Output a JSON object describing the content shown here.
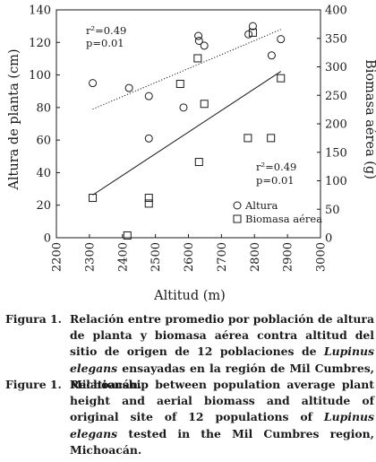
{
  "chart_data": {
    "type": "scatter",
    "x_axis": {
      "label": "Altitud (m)",
      "range": [
        2200,
        3000
      ],
      "ticks": [
        2200,
        2300,
        2400,
        2500,
        2600,
        2700,
        2800,
        2900,
        3000
      ]
    },
    "y_axis_left": {
      "label": "Altura de planta (cm)",
      "range": [
        0,
        140
      ],
      "ticks": [
        0,
        20,
        40,
        60,
        80,
        100,
        120,
        140
      ]
    },
    "y_axis_right": {
      "label": "Biomasa aérea (g)",
      "range": [
        0,
        400
      ],
      "ticks": [
        0,
        50,
        100,
        150,
        200,
        250,
        300,
        350,
        400
      ]
    },
    "series": [
      {
        "name": "Altura",
        "marker": "circle",
        "axis": "left",
        "points": [
          [
            2310,
            95
          ],
          [
            2420,
            92
          ],
          [
            2480,
            87
          ],
          [
            2480,
            61
          ],
          [
            2585,
            80
          ],
          [
            2630,
            124
          ],
          [
            2632,
            121
          ],
          [
            2648,
            118
          ],
          [
            2782,
            125
          ],
          [
            2795,
            130
          ],
          [
            2852,
            112
          ],
          [
            2880,
            122
          ]
        ],
        "fit": {
          "type": "linear",
          "line_style": "dotted",
          "from": [
            2310,
            79
          ],
          "to": [
            2880,
            128
          ]
        }
      },
      {
        "name": "Biomasa aérea",
        "marker": "square",
        "axis": "right",
        "points": [
          [
            2310,
            70
          ],
          [
            2415,
            4
          ],
          [
            2480,
            70
          ],
          [
            2480,
            60
          ],
          [
            2575,
            270
          ],
          [
            2628,
            315
          ],
          [
            2632,
            133
          ],
          [
            2648,
            235
          ],
          [
            2780,
            175
          ],
          [
            2795,
            360
          ],
          [
            2850,
            175
          ],
          [
            2880,
            280
          ]
        ],
        "fit": {
          "type": "linear",
          "line_style": "solid",
          "from": [
            2310,
            75
          ],
          "to": [
            2880,
            292
          ]
        }
      }
    ],
    "annotations": [
      {
        "text": "r²=0.49",
        "series": "Altura"
      },
      {
        "text": "p=0.01",
        "series": "Altura"
      },
      {
        "text": "r²=0.49",
        "series": "Biomasa aérea"
      },
      {
        "text": "p=0.01",
        "series": "Biomasa aérea"
      }
    ],
    "legend": {
      "position": "lower-right",
      "entries": [
        {
          "label": "Altura",
          "marker": "circle"
        },
        {
          "label": "Biomasa aérea",
          "marker": "square"
        }
      ]
    },
    "grid": false
  },
  "captions": [
    {
      "number": "Figura 1.",
      "text_before": "Relación entre promedio por población de altura de planta y biomasa aérea contra altitud del sitio de origen de 12 poblaciones de ",
      "species": "Lupinus elegans",
      "text_after": " ensayadas en la región de Mil Cumbres, Michoacán."
    },
    {
      "number": "Figure 1.",
      "text_before": "Relationship between population average plant height and aerial biomass and altitude of original site of 12 populations of ",
      "species": "Lupinus elegans",
      "text_after": " tested in the Mil Cumbres region, Michoacán."
    }
  ]
}
